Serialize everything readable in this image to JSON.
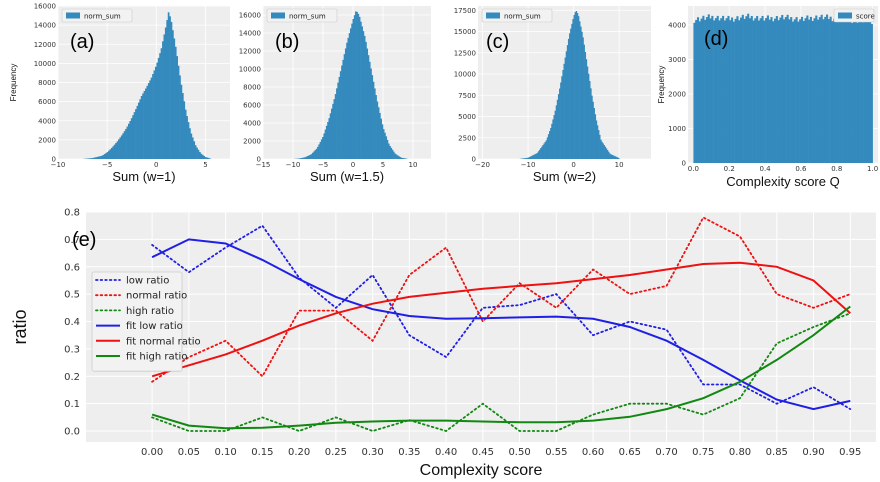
{
  "colors": {
    "bar": "#348abd",
    "plot_bg": "#eeeeee",
    "grid": "#ffffff",
    "blue": "#1f1fe6",
    "red": "#ee1111",
    "green": "#118811"
  },
  "chart_data": [
    {
      "type": "bar",
      "panel_label": "(a)",
      "xlabel": "Sum (w=1)",
      "ylabel": "Frequency",
      "legend": [
        "norm_sum"
      ],
      "xlim": [
        -10,
        7.5
      ],
      "ylim": [
        0,
        16000
      ],
      "xticks": [
        -10,
        -5,
        0,
        5
      ],
      "xtick_labels": [
        "−10",
        "−5",
        "0",
        "5"
      ],
      "yticks": [
        0,
        2000,
        4000,
        6000,
        8000,
        10000,
        12000,
        14000,
        16000
      ],
      "x": [
        -7.5,
        -6.5,
        -5.5,
        -5,
        -4.5,
        -4,
        -3.5,
        -3,
        -2.5,
        -2,
        -1.5,
        -1,
        -0.5,
        0,
        0.5,
        1,
        1.25,
        1.5,
        2,
        2.5,
        3,
        3.5,
        4,
        4.5,
        5,
        5.5
      ],
      "y": [
        0,
        100,
        350,
        700,
        1200,
        1800,
        2500,
        3300,
        4300,
        5400,
        6600,
        7500,
        8500,
        9800,
        11500,
        14000,
        15400,
        14500,
        11500,
        8000,
        5000,
        2800,
        1400,
        600,
        200,
        50
      ]
    },
    {
      "type": "bar",
      "panel_label": "(b)",
      "xlabel": "Sum (w=1.5)",
      "ylabel": "",
      "legend": [
        "norm_sum"
      ],
      "xlim": [
        -15,
        13
      ],
      "ylim": [
        0,
        17000
      ],
      "xticks": [
        -15,
        -10,
        -5,
        0,
        5,
        10
      ],
      "xtick_labels": [
        "−15",
        "−10",
        "−5",
        "0",
        "5",
        "10"
      ],
      "yticks": [
        0,
        2000,
        4000,
        6000,
        8000,
        10000,
        12000,
        14000,
        16000
      ],
      "x": [
        -10,
        -9,
        -8,
        -7,
        -6,
        -5,
        -4,
        -3,
        -2,
        -1,
        0,
        0.5,
        1,
        2,
        3,
        4,
        5,
        6,
        7,
        8,
        9
      ],
      "y": [
        0,
        50,
        200,
        500,
        1200,
        2500,
        4500,
        7000,
        10000,
        13000,
        15500,
        16500,
        16000,
        13500,
        10000,
        6500,
        3500,
        1600,
        600,
        150,
        30
      ]
    },
    {
      "type": "bar",
      "panel_label": "(c)",
      "xlabel": "Sum (w=2)",
      "ylabel": "",
      "legend": [
        "norm_sum"
      ],
      "xlim": [
        -21,
        17
      ],
      "ylim": [
        0,
        18000
      ],
      "xticks": [
        -20,
        -10,
        0,
        10
      ],
      "xtick_labels": [
        "−20",
        "−10",
        "0",
        "10"
      ],
      "yticks": [
        0,
        2500,
        5000,
        7500,
        10000,
        12500,
        15000,
        17500
      ],
      "x": [
        -12,
        -10,
        -8,
        -6,
        -5,
        -4,
        -3,
        -2,
        -1,
        0,
        0.5,
        1,
        2,
        3,
        4,
        5,
        6,
        8,
        10
      ],
      "y": [
        0,
        150,
        700,
        2200,
        3700,
        5800,
        8500,
        11500,
        14500,
        16800,
        17500,
        17000,
        14500,
        11000,
        7500,
        4500,
        2200,
        600,
        100
      ]
    },
    {
      "type": "bar",
      "panel_label": "(d)",
      "xlabel": "Complexity score Q",
      "ylabel": "Frequency",
      "legend": [
        "score"
      ],
      "xlim": [
        -0.03,
        1.03
      ],
      "ylim": [
        0,
        4550
      ],
      "xticks": [
        0.0,
        0.2,
        0.4,
        0.6,
        0.8,
        1.0
      ],
      "xtick_labels": [
        "0.0",
        "0.2",
        "0.4",
        "0.6",
        "0.8",
        "1.0"
      ],
      "yticks": [
        0,
        1000,
        2000,
        3000,
        4000
      ],
      "x": [
        0.0,
        0.1,
        0.2,
        0.3,
        0.4,
        0.5,
        0.6,
        0.7,
        0.8,
        0.9,
        1.0
      ],
      "y": [
        4150,
        4230,
        4170,
        4240,
        4180,
        4220,
        4160,
        4230,
        4190,
        4140,
        4120
      ]
    },
    {
      "type": "line",
      "panel_label": "(e)",
      "xlabel": "Complexity score",
      "ylabel": "ratio",
      "xlim": [
        -0.09,
        0.985
      ],
      "ylim": [
        -0.04,
        0.8
      ],
      "xticks": [
        0.0,
        0.05,
        0.1,
        0.15,
        0.2,
        0.25,
        0.3,
        0.35,
        0.4,
        0.45,
        0.5,
        0.55,
        0.6,
        0.65,
        0.7,
        0.75,
        0.8,
        0.85,
        0.9,
        0.95
      ],
      "xtick_labels": [
        "0.00",
        "0.05",
        "0.10",
        "0.15",
        "0.20",
        "0.25",
        "0.30",
        "0.35",
        "0.40",
        "0.45",
        "0.50",
        "0.55",
        "0.60",
        "0.65",
        "0.70",
        "0.75",
        "0.80",
        "0.85",
        "0.90",
        "0.95"
      ],
      "yticks": [
        0.0,
        0.1,
        0.2,
        0.3,
        0.4,
        0.5,
        0.6,
        0.7,
        0.8
      ],
      "ytick_labels": [
        "0.0",
        "0.1",
        "0.2",
        "0.3",
        "0.4",
        "0.5",
        "0.6",
        "0.7",
        "0.8"
      ],
      "legend_position": "center-left",
      "x": [
        0.0,
        0.05,
        0.1,
        0.15,
        0.2,
        0.25,
        0.3,
        0.35,
        0.4,
        0.45,
        0.5,
        0.55,
        0.6,
        0.65,
        0.7,
        0.75,
        0.8,
        0.85,
        0.9,
        0.95
      ],
      "series": [
        {
          "name": "low ratio",
          "style": "dotted",
          "color": "blue",
          "values": [
            0.68,
            0.58,
            0.67,
            0.75,
            0.56,
            0.45,
            0.57,
            0.35,
            0.27,
            0.45,
            0.46,
            0.5,
            0.35,
            0.4,
            0.37,
            0.17,
            0.17,
            0.1,
            0.16,
            0.08
          ]
        },
        {
          "name": "normal ratio",
          "style": "dotted",
          "color": "red",
          "values": [
            0.18,
            0.27,
            0.33,
            0.2,
            0.44,
            0.44,
            0.33,
            0.57,
            0.67,
            0.4,
            0.54,
            0.45,
            0.59,
            0.5,
            0.53,
            0.78,
            0.71,
            0.5,
            0.45,
            0.5
          ]
        },
        {
          "name": "high ratio",
          "style": "dotted",
          "color": "green",
          "values": [
            0.05,
            0.0,
            0.0,
            0.05,
            0.0,
            0.05,
            0.0,
            0.04,
            0.0,
            0.1,
            0.0,
            0.0,
            0.06,
            0.1,
            0.1,
            0.06,
            0.12,
            0.32,
            0.38,
            0.43
          ]
        },
        {
          "name": "fit low ratio",
          "style": "solid",
          "color": "blue",
          "values": [
            0.635,
            0.7,
            0.685,
            0.625,
            0.555,
            0.49,
            0.445,
            0.42,
            0.41,
            0.412,
            0.415,
            0.418,
            0.41,
            0.38,
            0.33,
            0.26,
            0.185,
            0.115,
            0.08,
            0.11
          ]
        },
        {
          "name": "fit normal ratio",
          "style": "solid",
          "color": "red",
          "values": [
            0.2,
            0.24,
            0.28,
            0.33,
            0.385,
            0.43,
            0.465,
            0.49,
            0.505,
            0.52,
            0.53,
            0.54,
            0.555,
            0.57,
            0.59,
            0.61,
            0.615,
            0.6,
            0.55,
            0.43
          ]
        },
        {
          "name": "fit high ratio",
          "style": "solid",
          "color": "green",
          "values": [
            0.06,
            0.02,
            0.01,
            0.012,
            0.02,
            0.03,
            0.035,
            0.038,
            0.038,
            0.035,
            0.032,
            0.032,
            0.038,
            0.052,
            0.08,
            0.12,
            0.18,
            0.26,
            0.35,
            0.455
          ]
        }
      ]
    }
  ]
}
